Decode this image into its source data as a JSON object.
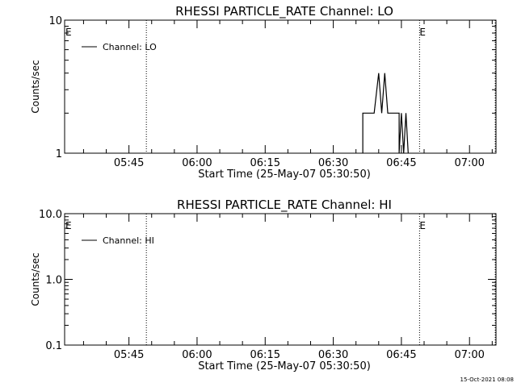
{
  "footer": {
    "timestamp": "15-Oct-2021 08:08"
  },
  "chart_data": [
    {
      "type": "line",
      "title": "RHESSI PARTICLE_RATE Channel: LO",
      "xlabel": "Start Time (25-May-07 05:30:50)",
      "ylabel": "Counts/sec",
      "yscale": "log",
      "ylim": [
        1,
        10
      ],
      "ytick_labels": [
        "1",
        "10"
      ],
      "xlim_minutes_from_start": [
        0,
        95
      ],
      "xtick_labels": [
        "05:45",
        "06:00",
        "06:15",
        "06:30",
        "06:45",
        "07:00"
      ],
      "legend": {
        "position": "top-left",
        "label": "Channel: LO"
      },
      "grid": false,
      "event_marks": [
        {
          "label": "E",
          "time": "05:30:50"
        },
        {
          "label": "E",
          "time": "06:49:00"
        }
      ],
      "dotted_lines": [
        "05:48:50",
        "06:49:00",
        "07:05:40"
      ],
      "series": [
        {
          "name": "Channel: LO",
          "points": [
            [
              "06:36:30",
              2
            ],
            [
              "06:39:00",
              2
            ],
            [
              "06:40:00",
              4
            ],
            [
              "06:40:40",
              2
            ],
            [
              "06:41:20",
              4
            ],
            [
              "06:42:00",
              2
            ],
            [
              "06:43:00",
              2
            ],
            [
              "06:44:30",
              2
            ],
            [
              "06:44:30",
              1
            ],
            [
              "06:45:00",
              2
            ],
            [
              "06:45:30",
              1
            ],
            [
              "06:46:00",
              2
            ],
            [
              "06:46:30",
              1
            ]
          ]
        }
      ]
    },
    {
      "type": "line",
      "title": "RHESSI PARTICLE_RATE Channel: HI",
      "xlabel": "Start Time (25-May-07 05:30:50)",
      "ylabel": "Counts/sec",
      "yscale": "log",
      "ylim": [
        0.1,
        10
      ],
      "ytick_labels": [
        "0.1",
        "1.0",
        "10.0"
      ],
      "xlim_minutes_from_start": [
        0,
        95
      ],
      "xtick_labels": [
        "05:45",
        "06:00",
        "06:15",
        "06:30",
        "06:45",
        "07:00"
      ],
      "legend": {
        "position": "top-left",
        "label": "Channel: HI"
      },
      "grid": false,
      "event_marks": [
        {
          "label": "E",
          "time": "05:30:50"
        },
        {
          "label": "E",
          "time": "06:49:00"
        }
      ],
      "dotted_lines": [
        "05:48:50",
        "06:49:00",
        "07:05:40"
      ],
      "series": [
        {
          "name": "Channel: HI",
          "points": []
        }
      ]
    }
  ]
}
